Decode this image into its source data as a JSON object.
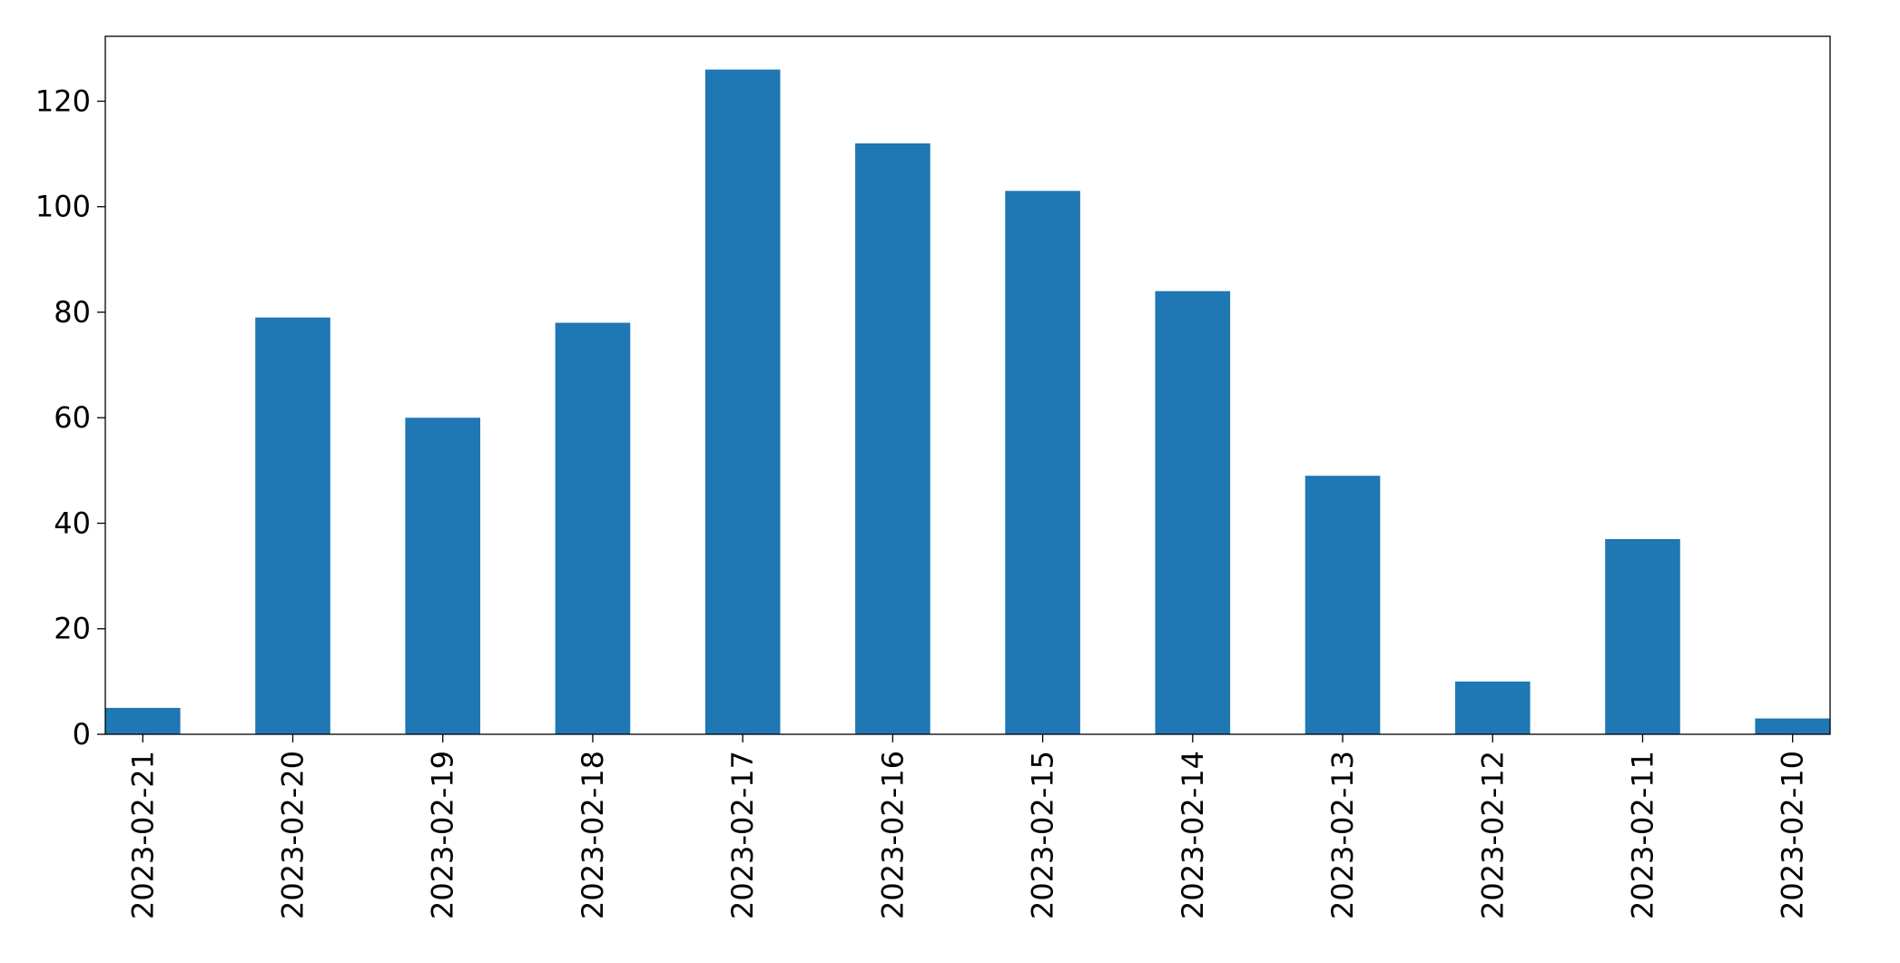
{
  "chart_data": {
    "type": "bar",
    "categories": [
      "2023-02-21",
      "2023-02-20",
      "2023-02-19",
      "2023-02-18",
      "2023-02-17",
      "2023-02-16",
      "2023-02-15",
      "2023-02-14",
      "2023-02-13",
      "2023-02-12",
      "2023-02-11",
      "2023-02-10"
    ],
    "values": [
      5,
      79,
      60,
      78,
      126,
      112,
      103,
      84,
      49,
      10,
      37,
      3
    ],
    "color": "#1f77b4",
    "ylim": [
      0,
      132.3
    ],
    "yticks": [
      0,
      20,
      40,
      60,
      80,
      100,
      120
    ],
    "grid": false
  }
}
